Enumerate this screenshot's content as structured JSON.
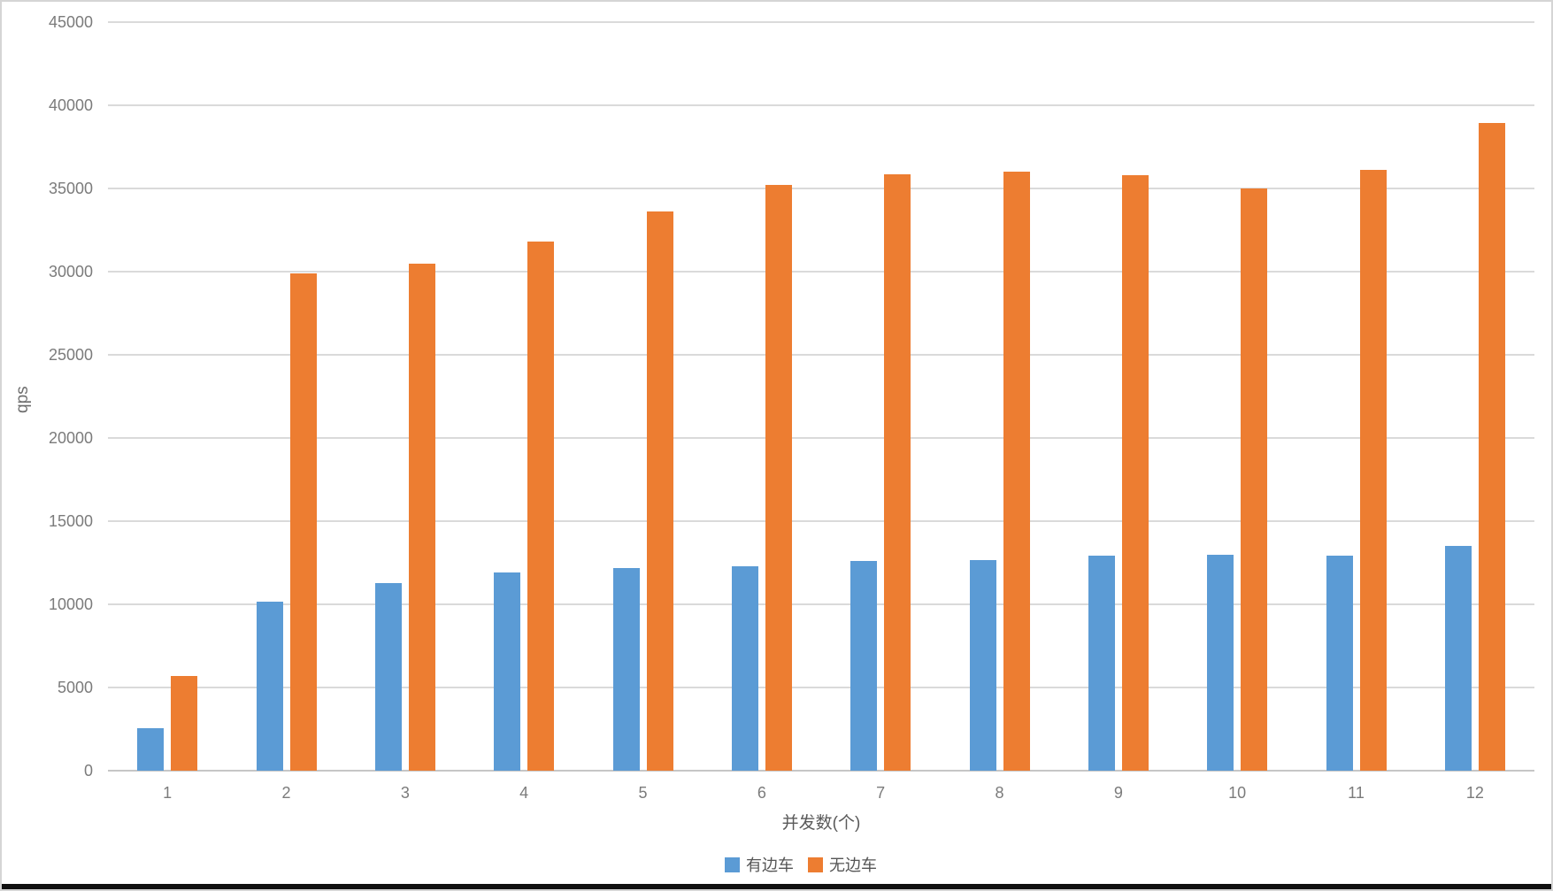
{
  "chart_data": {
    "type": "bar",
    "title": "",
    "xlabel": "并发数(个)",
    "ylabel": "qps",
    "categories": [
      "1",
      "2",
      "3",
      "4",
      "5",
      "6",
      "7",
      "8",
      "9",
      "10",
      "11",
      "12"
    ],
    "series": [
      {
        "name": "有边车",
        "color": "#5B9BD5",
        "values": [
          2550,
          10150,
          11300,
          11900,
          12200,
          12300,
          12600,
          12650,
          12950,
          13000,
          12950,
          13500
        ]
      },
      {
        "name": "无边车",
        "color": "#ED7D31",
        "values": [
          5700,
          29900,
          30500,
          31800,
          33600,
          35200,
          35850,
          36000,
          35800,
          35000,
          36100,
          38950
        ]
      }
    ],
    "ylim": [
      0,
      45000
    ],
    "ytick_step": 5000,
    "ytick_labels": [
      "0",
      "5000",
      "10000",
      "15000",
      "20000",
      "25000",
      "30000",
      "35000",
      "40000",
      "45000"
    ],
    "grid": true,
    "legend_position": "bottom-center"
  },
  "colors": {
    "series_blue": "#5B9BD5",
    "series_orange": "#ED7D31",
    "gridline": "#dadada",
    "baseline": "#c6c6c6",
    "tick_text": "#7b7b7b",
    "title_text": "#5a5a5a"
  }
}
